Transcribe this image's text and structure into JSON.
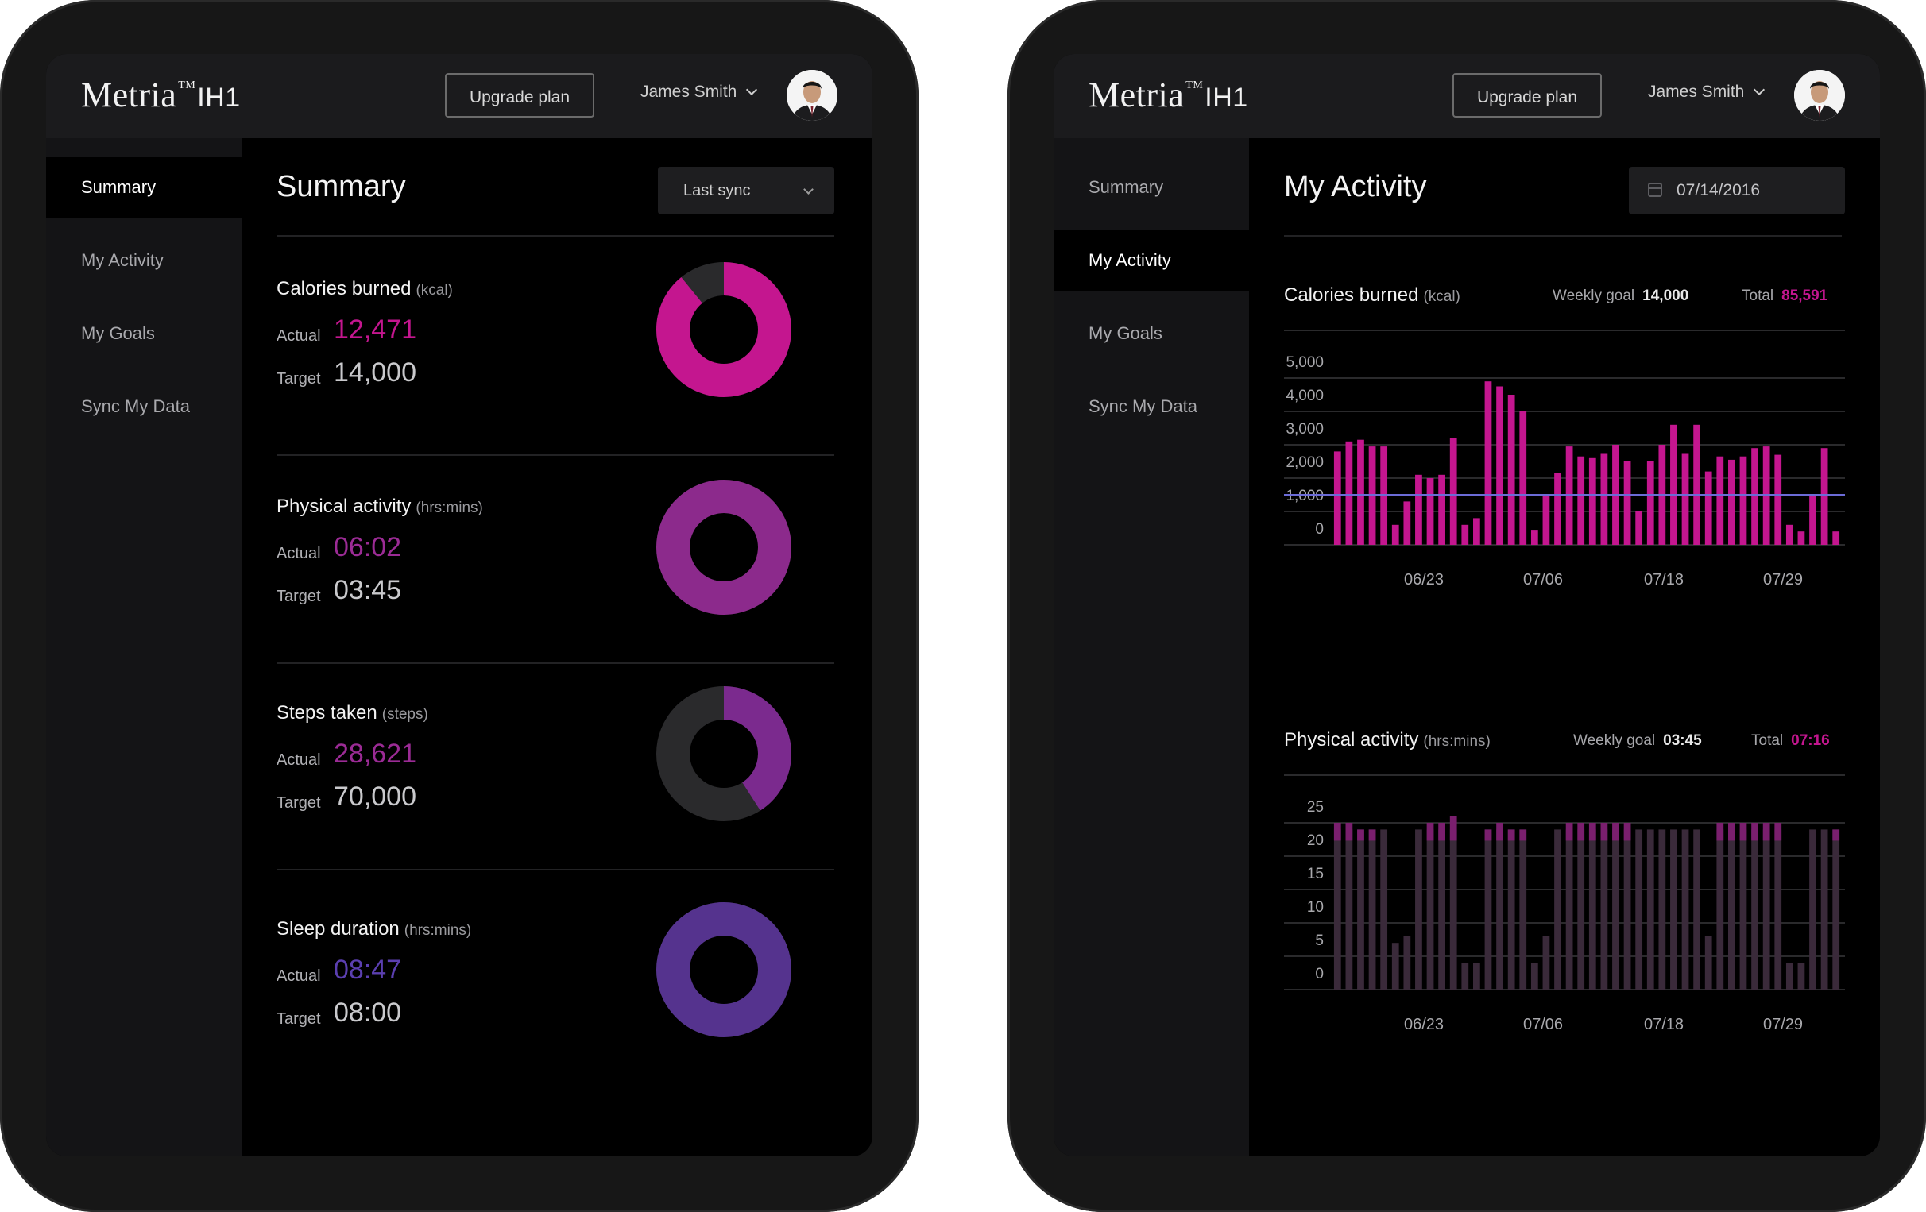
{
  "brand": {
    "name": "Metria",
    "tm": "TM",
    "model": "IH1"
  },
  "header": {
    "upgrade_label": "Upgrade plan",
    "user_name": "James Smith"
  },
  "nav": {
    "items": [
      "Summary",
      "My Activity",
      "My Goals",
      "Sync My Data"
    ]
  },
  "summary": {
    "title": "Summary",
    "sync_select": "Last sync",
    "actual_label": "Actual",
    "target_label": "Target",
    "metrics": [
      {
        "title": "Calories burned",
        "unit": "(kcal)",
        "actual": "12,471",
        "target": "14,000",
        "fraction": 0.891,
        "color": "#c4168f"
      },
      {
        "title": "Physical activity",
        "unit": "(hrs:mins)",
        "actual": "06:02",
        "target": "03:45",
        "fraction": 1.0,
        "color": "#8c2a8c"
      },
      {
        "title": "Steps taken",
        "unit": "(steps)",
        "actual": "28,621",
        "target": "70,000",
        "fraction": 0.409,
        "color": "#7b2a8e"
      },
      {
        "title": "Sleep duration",
        "unit": "(hrs:mins)",
        "actual": "08:47",
        "target": "08:00",
        "fraction": 1.0,
        "color": "#55338e"
      }
    ]
  },
  "activity": {
    "title": "My Activity",
    "date": "07/14/2016",
    "weekly_goal_label": "Weekly goal",
    "total_label": "Total",
    "calories": {
      "title": "Calories burned",
      "unit": "(kcal)",
      "weekly_goal": "14,000",
      "total": "85,591"
    },
    "physical": {
      "title": "Physical activity",
      "unit": "(hrs:mins)",
      "weekly_goal": "03:45",
      "total": "07:16"
    }
  },
  "colors": {
    "magenta": "#c4168f",
    "purple": "#8c2a8c",
    "violet": "#55338e",
    "goal_line": "#6b6bd6",
    "bar_dark": "#3a2a3a"
  },
  "chart_data": [
    {
      "type": "bar",
      "title": "Calories burned",
      "ylabel": "(kcal)",
      "x_tick_labels": [
        "06/23",
        "07/06",
        "07/18",
        "07/29"
      ],
      "yticks": [
        "0",
        "1,000",
        "2,000",
        "3,000",
        "4,000",
        "5,000"
      ],
      "ylim": [
        -500,
        5500
      ],
      "goal_line": 1500,
      "values": [
        2800,
        3100,
        3150,
        2950,
        2950,
        600,
        1300,
        2100,
        2000,
        2100,
        3200,
        600,
        800,
        4900,
        4750,
        4500,
        4000,
        450,
        1500,
        2150,
        2950,
        2650,
        2600,
        2750,
        3000,
        2500,
        1000,
        2500,
        3000,
        3600,
        2750,
        3600,
        2200,
        2650,
        2550,
        2650,
        2900,
        2950,
        2700,
        600,
        400,
        1500,
        2900,
        400
      ]
    },
    {
      "type": "bar",
      "title": "Physical activity",
      "ylabel": "(hrs:mins)",
      "x_tick_labels": [
        "06/23",
        "07/06",
        "07/18",
        "07/29"
      ],
      "yticks": [
        "0",
        "5",
        "10",
        "15",
        "20",
        "25"
      ],
      "ylim": [
        -2.5,
        27.5
      ],
      "values": [
        24,
        24,
        24,
        24,
        24,
        7,
        8,
        24,
        24,
        24,
        24,
        4,
        4,
        24,
        24,
        24,
        24,
        4,
        8,
        24,
        24,
        24,
        24,
        24,
        24,
        24,
        24,
        24,
        24,
        24,
        24,
        24,
        8,
        24,
        24,
        24,
        24,
        24,
        24,
        4,
        4,
        24,
        24,
        24
      ],
      "highlight": [
        25,
        25,
        24,
        24,
        0,
        5,
        0,
        0,
        25,
        25,
        26,
        0,
        0,
        24,
        25,
        24,
        24,
        0,
        0,
        0,
        25,
        25,
        25,
        25,
        25,
        25,
        0,
        0,
        0,
        0,
        0,
        22,
        0,
        25,
        25,
        25,
        25,
        25,
        25,
        0,
        0,
        0,
        0,
        24
      ]
    }
  ]
}
